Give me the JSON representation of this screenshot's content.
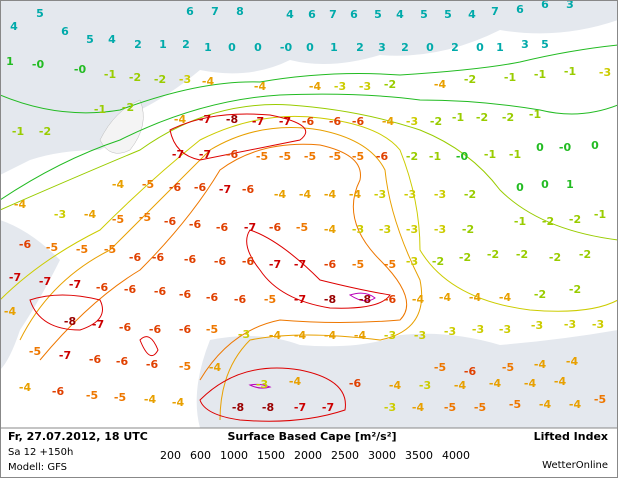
{
  "footer": {
    "date": "Fr, 27.07.2012, 18 UTC",
    "run": "Sa 12 +150h",
    "model": "Modell: GFS",
    "cape_title": "Surface Based Cape [m²/s²]",
    "index_title": "Lifted Index",
    "brand": "WetterOnline"
  },
  "legend": [
    {
      "value": 200,
      "color": "#22bb22"
    },
    {
      "value": 600,
      "color": "#99cc00"
    },
    {
      "value": 1000,
      "color": "#cccc00"
    },
    {
      "value": 1500,
      "color": "#e8a000"
    },
    {
      "value": 2000,
      "color": "#ee7700"
    },
    {
      "value": 2500,
      "color": "#dd0000"
    },
    {
      "value": 3000,
      "color": "#bb00bb"
    },
    {
      "value": 3500,
      "color": "#9900aa"
    },
    {
      "value": 4000,
      "color": "#880088"
    }
  ],
  "labels": [
    "4",
    "5",
    "6",
    "5",
    "4",
    "2",
    "1",
    "6",
    "7",
    "8",
    "4",
    "6",
    "7",
    "6",
    "5",
    "4",
    "5",
    "5",
    "4",
    "7",
    "6",
    "6",
    "3",
    "5",
    "3",
    "1",
    "0",
    "2",
    "0",
    "2",
    "3",
    "2",
    "1",
    "0",
    "-0",
    "0",
    "0",
    "1",
    "2",
    "1",
    "-0",
    "-0",
    "-1",
    "-2",
    "-2",
    "-3",
    "-4",
    "-4",
    "-4",
    "-3",
    "-3",
    "-2",
    "-4",
    "-2",
    "-1",
    "-1",
    "-1",
    "-3",
    "-1",
    "-2",
    "-1",
    "-2",
    "-4",
    "-7",
    "-8",
    "-7",
    "-7",
    "-6",
    "-6",
    "-6",
    "-4",
    "-3",
    "-2",
    "-1",
    "-2",
    "-2",
    "-1",
    "-7",
    "-7",
    "-6",
    "-5",
    "-5",
    "-5",
    "-5",
    "-5",
    "-6",
    "-2",
    "-1",
    "-0",
    "-1",
    "-1",
    "0",
    "-0",
    "0",
    "-4",
    "-4",
    "-5",
    "-6",
    "-6",
    "-7",
    "-6",
    "-4",
    "-4",
    "-4",
    "-4",
    "-3",
    "-3",
    "-3",
    "-2",
    "0",
    "0",
    "1",
    "-6",
    "-3",
    "-4",
    "-5",
    "-5",
    "-6",
    "-6",
    "-6",
    "-7",
    "-6",
    "-5",
    "-4",
    "-3",
    "-3",
    "-3",
    "-3",
    "-2",
    "-1",
    "-2",
    "-2",
    "-1",
    "-5",
    "-5",
    "-5",
    "-6",
    "-6",
    "-6",
    "-6",
    "-6",
    "-7",
    "-7",
    "-6",
    "-5",
    "-5",
    "-3",
    "-2",
    "-2",
    "-2",
    "-2",
    "-2",
    "-2",
    "-7",
    "-7",
    "-7",
    "-6",
    "-6",
    "-6",
    "-6",
    "-6",
    "-6",
    "-5",
    "-7",
    "-8",
    "-8",
    "-6",
    "-4",
    "-4",
    "-4",
    "-4",
    "-2",
    "-2",
    "-4",
    "-8",
    "-7",
    "-6",
    "-6",
    "-6",
    "-5",
    "-3",
    "-4",
    "-4",
    "-4",
    "-4",
    "-3",
    "-3",
    "-3",
    "-3",
    "-3",
    "-3",
    "-3",
    "-3",
    "-5",
    "-7",
    "-6",
    "-6",
    "-6",
    "-5",
    "-4",
    "-5",
    "-6",
    "-5",
    "-4",
    "-4",
    "-4",
    "-6",
    "-5",
    "-5",
    "-4",
    "-4",
    "-3",
    "-4",
    "-6",
    "-4",
    "-3",
    "-4",
    "-4",
    "-4",
    "-4",
    "-5",
    "-8",
    "-8",
    "-7",
    "-7",
    "-3",
    "-4",
    "-5",
    "-5",
    "-5",
    "-4",
    "-4"
  ]
}
